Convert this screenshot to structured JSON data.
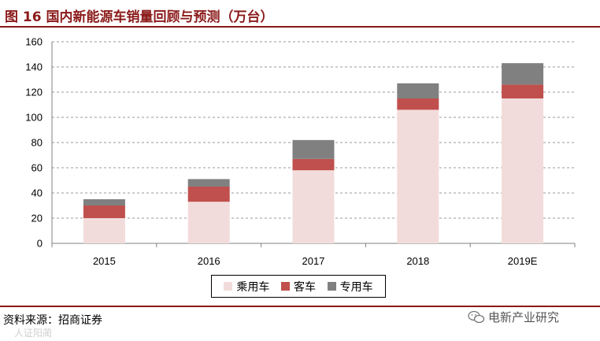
{
  "figure": {
    "title": "图 16  国内新能源车销量回顾与预测（万台）",
    "source": "资料来源：招商证券",
    "watermark": "电新产业研究",
    "faint_watermark": "人证阳蔺"
  },
  "colors": {
    "passenger": "#F2DCDB",
    "bus": "#C0504D",
    "special": "#808080",
    "accent": "#8B1A1A"
  },
  "chart_data": {
    "type": "bar",
    "stacked": true,
    "title": "",
    "xlabel": "",
    "ylabel": "",
    "categories": [
      "2015",
      "2016",
      "2017",
      "2018",
      "2019E"
    ],
    "series": [
      {
        "name": "乘用车",
        "values": [
          20,
          33,
          58,
          106,
          115
        ]
      },
      {
        "name": "客车",
        "values": [
          10,
          12,
          9,
          9,
          11
        ]
      },
      {
        "name": "专用车",
        "values": [
          5,
          6,
          15,
          12,
          17
        ]
      }
    ],
    "ylim": [
      0,
      160
    ],
    "yticks": [
      0,
      20,
      40,
      60,
      80,
      100,
      120,
      140,
      160
    ],
    "grid": "dashed horizontal",
    "legend": "bottom-center"
  }
}
